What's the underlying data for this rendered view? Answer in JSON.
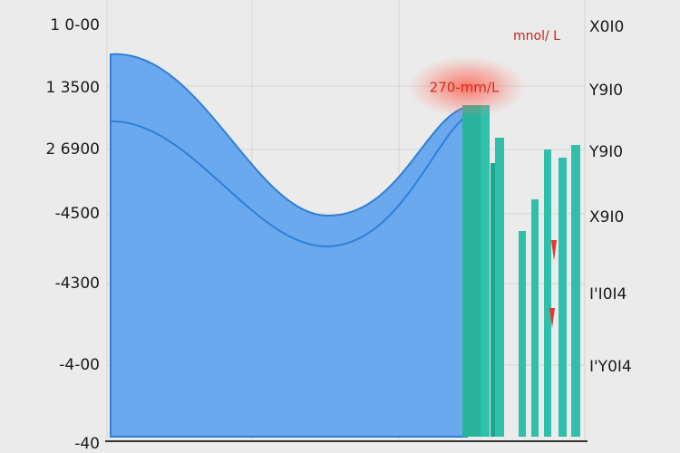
{
  "axis_left": {
    "labels": [
      "1 0-00",
      "1 3500",
      "2 6900",
      "-4500",
      "-4300",
      "-4-00",
      "-40"
    ]
  },
  "axis_right": {
    "labels": [
      "X0I0",
      "Y9I0",
      "Y9I0",
      "X9I0",
      "I'I0I4",
      "I'Y0I4"
    ]
  },
  "annotations": {
    "unit": "mnol/ L",
    "highlight": "270-mm/L"
  }
}
